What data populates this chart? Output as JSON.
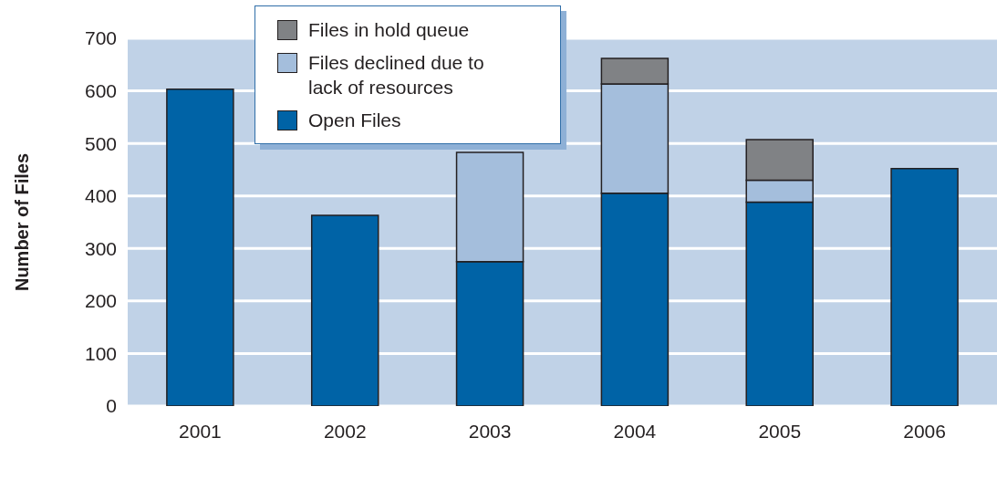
{
  "chart_data": {
    "type": "bar",
    "ylabel": "Number of Files",
    "categories": [
      "2001",
      "2002",
      "2003",
      "2004",
      "2005",
      "2006"
    ],
    "series": [
      {
        "name": "Open Files",
        "color": "#0063a6",
        "values": [
          603,
          363,
          275,
          405,
          388,
          452
        ]
      },
      {
        "name": "Files declined due to lack of resources",
        "color": "#a4bedc",
        "values": [
          null,
          null,
          208,
          208,
          42,
          null
        ]
      },
      {
        "name": "Files in hold queue",
        "color": "#808285",
        "values": [
          null,
          null,
          null,
          49,
          77,
          null
        ]
      }
    ],
    "stacked": true,
    "ylim": [
      0,
      700
    ],
    "yticks": [
      0,
      100,
      200,
      300,
      400,
      500,
      600,
      700
    ],
    "grid": "y",
    "legend": "top"
  }
}
